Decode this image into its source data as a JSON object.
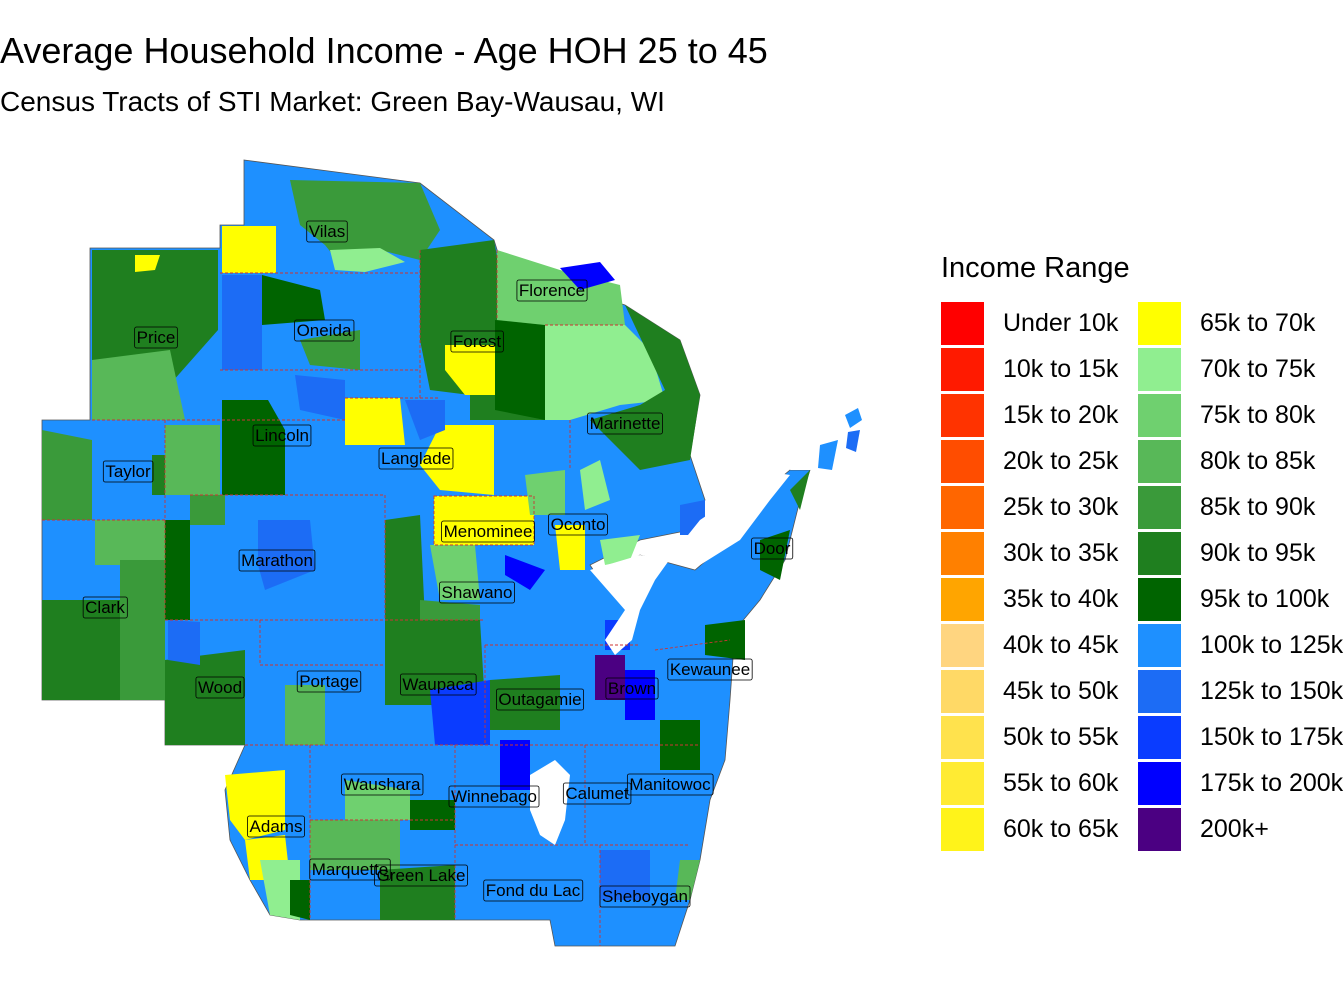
{
  "title": "Average Household Income - Age HOH 25 to 45",
  "subtitle": "Census Tracts of STI Market: Green Bay-Wausau, WI",
  "legend": {
    "title": "Income Range",
    "items": [
      {
        "label": "Under 10k",
        "color": "#FF0000"
      },
      {
        "label": "10k to 15k",
        "color": "#FF1A00"
      },
      {
        "label": "15k to 20k",
        "color": "#FF3300"
      },
      {
        "label": "20k to 25k",
        "color": "#FF4D00"
      },
      {
        "label": "25k to 30k",
        "color": "#FF6600"
      },
      {
        "label": "30k to 35k",
        "color": "#FF8000"
      },
      {
        "label": "35k to 40k",
        "color": "#FFA500"
      },
      {
        "label": "40k to 45k",
        "color": "#FFD580"
      },
      {
        "label": "45k to 50k",
        "color": "#FFD966"
      },
      {
        "label": "50k to 55k",
        "color": "#FFE24D"
      },
      {
        "label": "55k to 60k",
        "color": "#FFEB33"
      },
      {
        "label": "60k to 65k",
        "color": "#FFF31A"
      },
      {
        "label": "65k to 70k",
        "color": "#FFFF00"
      },
      {
        "label": "70k to 75k",
        "color": "#90EE90"
      },
      {
        "label": "75k to 80k",
        "color": "#6FD06F"
      },
      {
        "label": "80k to 85k",
        "color": "#58B858"
      },
      {
        "label": "85k to 90k",
        "color": "#3A9A3A"
      },
      {
        "label": "90k to 95k",
        "color": "#1F7F1F"
      },
      {
        "label": "95k to 100k",
        "color": "#006400"
      },
      {
        "label": "100k to 125k",
        "color": "#1E90FF"
      },
      {
        "label": "125k to 150k",
        "color": "#1C6CF5"
      },
      {
        "label": "150k to 175k",
        "color": "#0A3CFF"
      },
      {
        "label": "175k to 200k",
        "color": "#0000FF"
      },
      {
        "label": "200k+",
        "color": "#4B0082"
      }
    ]
  },
  "counties": [
    "Vilas",
    "Florence",
    "Price",
    "Oneida",
    "Forest",
    "Marinette",
    "Lincoln",
    "Taylor",
    "Langlade",
    "Menominee",
    "Oconto",
    "Door",
    "Marathon",
    "Shawano",
    "Clark",
    "Kewaunee",
    "Wood",
    "Portage",
    "Waupaca",
    "Outagamie",
    "Brown",
    "Waushara",
    "Winnebago",
    "Calumet",
    "Manitowoc",
    "Adams",
    "Marquette",
    "Green Lake",
    "Fond du Lac",
    "Sheboygan"
  ]
}
